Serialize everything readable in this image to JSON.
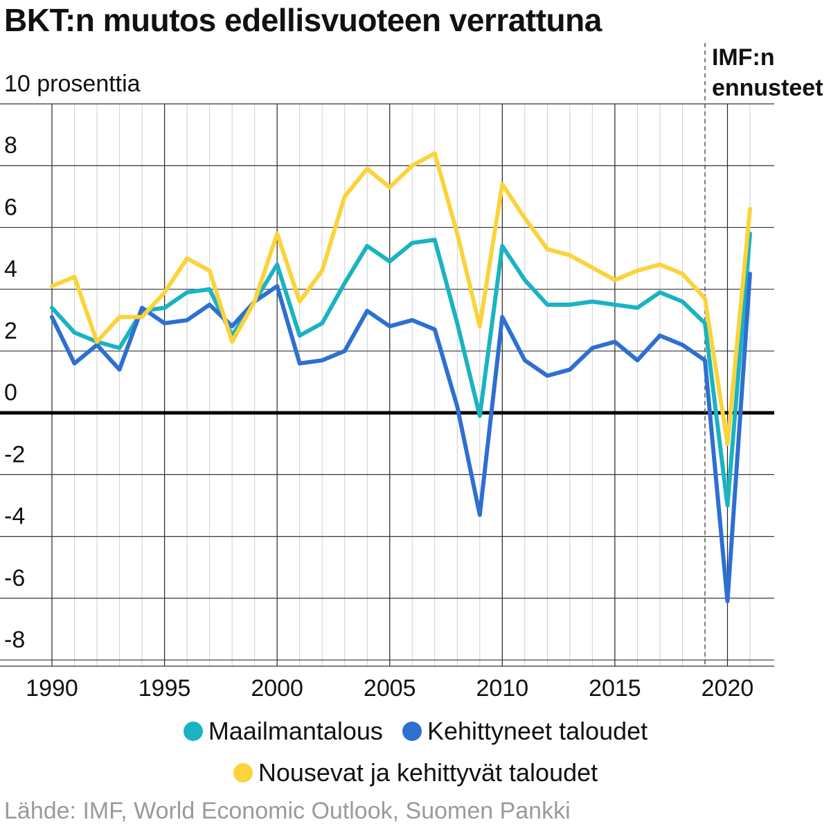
{
  "chart_data": {
    "type": "line",
    "title": "BKT:n muutos edellisvuoteen verrattuna",
    "ylabel": "10 prosenttia",
    "xlabel": "",
    "ylim": [
      -8.2,
      10
    ],
    "xlim": [
      1990,
      2021
    ],
    "yticks": [
      8,
      6,
      4,
      2,
      0,
      -2,
      -4,
      -6,
      -8
    ],
    "ytick_labels": [
      "8",
      "6",
      "4",
      "2",
      "0",
      "-2",
      "-4",
      "-6",
      "-8"
    ],
    "xticks": [
      1990,
      1995,
      2000,
      2005,
      2010,
      2015,
      2020
    ],
    "xtick_labels": [
      "1990",
      "1995",
      "2000",
      "2005",
      "2010",
      "2015",
      "2020"
    ],
    "grid": true,
    "legend_position": "bottom",
    "forecast_label": "IMF:n ennusteet",
    "forecast_start": 2019,
    "x": [
      1990,
      1991,
      1992,
      1993,
      1994,
      1995,
      1996,
      1997,
      1998,
      1999,
      2000,
      2001,
      2002,
      2003,
      2004,
      2005,
      2006,
      2007,
      2008,
      2009,
      2010,
      2011,
      2012,
      2013,
      2014,
      2015,
      2016,
      2017,
      2018,
      2019,
      2020,
      2021
    ],
    "series": [
      {
        "name": "Maailmantalous",
        "color": "#1ab3c2",
        "values": [
          3.4,
          2.6,
          2.3,
          2.1,
          3.3,
          3.4,
          3.9,
          4.0,
          2.5,
          3.6,
          4.8,
          2.5,
          2.9,
          4.2,
          5.4,
          4.9,
          5.5,
          5.6,
          2.9,
          -0.1,
          5.4,
          4.3,
          3.5,
          3.5,
          3.6,
          3.5,
          3.4,
          3.9,
          3.6,
          2.9,
          -3.0,
          5.8
        ]
      },
      {
        "name": "Kehittyneet taloudet",
        "color": "#2e6fd1",
        "values": [
          3.1,
          1.6,
          2.2,
          1.4,
          3.4,
          2.9,
          3.0,
          3.5,
          2.8,
          3.6,
          4.1,
          1.6,
          1.7,
          2.0,
          3.3,
          2.8,
          3.0,
          2.7,
          0.2,
          -3.3,
          3.1,
          1.7,
          1.2,
          1.4,
          2.1,
          2.3,
          1.7,
          2.5,
          2.2,
          1.7,
          -6.1,
          4.5
        ]
      },
      {
        "name": "Nousevat ja kehittyvät taloudet",
        "color": "#fbd33a",
        "values": [
          4.1,
          4.4,
          2.3,
          3.1,
          3.1,
          3.9,
          5.0,
          4.6,
          2.3,
          3.6,
          5.8,
          3.6,
          4.6,
          7.0,
          7.9,
          7.3,
          8.0,
          8.4,
          5.8,
          2.8,
          7.4,
          6.3,
          5.3,
          5.1,
          4.7,
          4.3,
          4.6,
          4.8,
          4.5,
          3.7,
          -1.0,
          6.6
        ]
      }
    ]
  },
  "legend": {
    "item1": "Maailmantalous",
    "item2": "Kehittyneet taloudet",
    "item3": "Nousevat ja kehittyvät taloudet"
  },
  "source": "Lähde: IMF, World Economic Outlook, Suomen Pankki"
}
